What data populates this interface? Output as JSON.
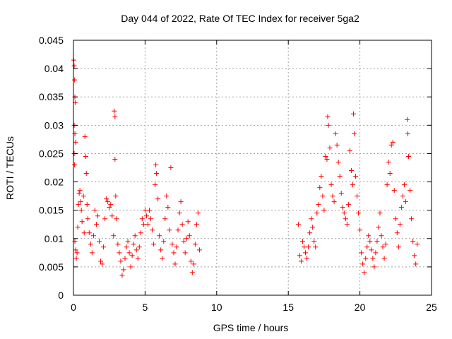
{
  "chart_data": {
    "type": "scatter",
    "title": "Day 044 of 2022, Rate Of TEC Index for receiver 5ga2",
    "xlabel": "GPS time / hours",
    "ylabel": "ROTI / TECUs",
    "xlim": [
      0,
      25
    ],
    "ylim": [
      0,
      0.045
    ],
    "xticks": [
      0,
      5,
      10,
      15,
      20,
      25
    ],
    "yticks": [
      0,
      0.005,
      0.01,
      0.015,
      0.02,
      0.025,
      0.03,
      0.035,
      0.04,
      0.045
    ],
    "xtick_labels": [
      "0",
      "5",
      "10",
      "15",
      "20",
      "25"
    ],
    "ytick_labels": [
      "0",
      "0.005",
      "0.01",
      "0.015",
      "0.02",
      "0.025",
      "0.03",
      "0.035",
      "0.04",
      "0.045"
    ],
    "grid": true,
    "marker": "+",
    "color": "#ff0000",
    "series": [
      {
        "name": "ROTI",
        "points": [
          [
            0.02,
            0.0415
          ],
          [
            0.05,
            0.0405
          ],
          [
            0.08,
            0.038
          ],
          [
            0.1,
            0.035
          ],
          [
            0.12,
            0.034
          ],
          [
            0.05,
            0.03
          ],
          [
            0.1,
            0.0285
          ],
          [
            0.15,
            0.027
          ],
          [
            0.05,
            0.025
          ],
          [
            0.08,
            0.023
          ],
          [
            0.1,
            0.0095
          ],
          [
            0.15,
            0.008
          ],
          [
            0.2,
            0.0065
          ],
          [
            0.25,
            0.0075
          ],
          [
            0.3,
            0.012
          ],
          [
            0.35,
            0.016
          ],
          [
            0.4,
            0.018
          ],
          [
            0.45,
            0.0185
          ],
          [
            0.5,
            0.0165
          ],
          [
            0.55,
            0.015
          ],
          [
            0.6,
            0.013
          ],
          [
            0.7,
            0.0175
          ],
          [
            0.75,
            0.011
          ],
          [
            0.8,
            0.028
          ],
          [
            0.85,
            0.0245
          ],
          [
            0.9,
            0.0215
          ],
          [
            0.95,
            0.016
          ],
          [
            1.0,
            0.0135
          ],
          [
            1.1,
            0.011
          ],
          [
            1.2,
            0.009
          ],
          [
            1.3,
            0.0075
          ],
          [
            1.4,
            0.0105
          ],
          [
            1.5,
            0.015
          ],
          [
            1.6,
            0.0125
          ],
          [
            1.7,
            0.014
          ],
          [
            1.8,
            0.0095
          ],
          [
            1.9,
            0.006
          ],
          [
            2.0,
            0.0055
          ],
          [
            2.1,
            0.0085
          ],
          [
            2.2,
            0.0135
          ],
          [
            2.3,
            0.017
          ],
          [
            2.4,
            0.0165
          ],
          [
            2.5,
            0.0155
          ],
          [
            2.6,
            0.016
          ],
          [
            2.7,
            0.014
          ],
          [
            2.8,
            0.0105
          ],
          [
            2.85,
            0.0325
          ],
          [
            2.9,
            0.0315
          ],
          [
            2.9,
            0.024
          ],
          [
            2.95,
            0.0175
          ],
          [
            3.0,
            0.0135
          ],
          [
            3.1,
            0.009
          ],
          [
            3.2,
            0.0075
          ],
          [
            3.3,
            0.006
          ],
          [
            3.4,
            0.0035
          ],
          [
            3.5,
            0.0045
          ],
          [
            3.6,
            0.0065
          ],
          [
            3.7,
            0.0085
          ],
          [
            3.8,
            0.0095
          ],
          [
            3.9,
            0.0075
          ],
          [
            4.0,
            0.005
          ],
          [
            4.1,
            0.007
          ],
          [
            4.2,
            0.009
          ],
          [
            4.3,
            0.0105
          ],
          [
            4.4,
            0.008
          ],
          [
            4.5,
            0.0065
          ],
          [
            4.6,
            0.0085
          ],
          [
            4.7,
            0.011
          ],
          [
            4.8,
            0.0135
          ],
          [
            4.9,
            0.0125
          ],
          [
            5.0,
            0.015
          ],
          [
            5.1,
            0.014
          ],
          [
            5.2,
            0.0125
          ],
          [
            5.3,
            0.015
          ],
          [
            5.4,
            0.0135
          ],
          [
            5.5,
            0.0115
          ],
          [
            5.6,
            0.009
          ],
          [
            5.7,
            0.0195
          ],
          [
            5.75,
            0.023
          ],
          [
            5.8,
            0.0215
          ],
          [
            5.9,
            0.017
          ],
          [
            6.0,
            0.0105
          ],
          [
            6.1,
            0.008
          ],
          [
            6.2,
            0.0065
          ],
          [
            6.3,
            0.0095
          ],
          [
            6.4,
            0.0135
          ],
          [
            6.5,
            0.0175
          ],
          [
            6.6,
            0.0155
          ],
          [
            6.7,
            0.0115
          ],
          [
            6.8,
            0.0225
          ],
          [
            6.9,
            0.009
          ],
          [
            7.0,
            0.0075
          ],
          [
            7.1,
            0.0055
          ],
          [
            7.2,
            0.0085
          ],
          [
            7.3,
            0.0115
          ],
          [
            7.4,
            0.0145
          ],
          [
            7.5,
            0.0165
          ],
          [
            7.6,
            0.0125
          ],
          [
            7.7,
            0.0095
          ],
          [
            7.8,
            0.0075
          ],
          [
            7.9,
            0.01
          ],
          [
            8.0,
            0.013
          ],
          [
            8.1,
            0.0105
          ],
          [
            8.2,
            0.006
          ],
          [
            8.3,
            0.004
          ],
          [
            8.4,
            0.0055
          ],
          [
            8.5,
            0.009
          ],
          [
            8.6,
            0.0125
          ],
          [
            8.7,
            0.0145
          ],
          [
            8.8,
            0.008
          ],
          [
            15.7,
            0.0125
          ],
          [
            15.8,
            0.007
          ],
          [
            15.9,
            0.006
          ],
          [
            16.0,
            0.0095
          ],
          [
            16.1,
            0.0085
          ],
          [
            16.2,
            0.0075
          ],
          [
            16.3,
            0.0065
          ],
          [
            16.4,
            0.0085
          ],
          [
            16.5,
            0.011
          ],
          [
            16.6,
            0.0135
          ],
          [
            16.7,
            0.012
          ],
          [
            16.8,
            0.0095
          ],
          [
            16.9,
            0.0085
          ],
          [
            17.0,
            0.0145
          ],
          [
            17.1,
            0.016
          ],
          [
            17.2,
            0.019
          ],
          [
            17.3,
            0.021
          ],
          [
            17.4,
            0.0175
          ],
          [
            17.5,
            0.015
          ],
          [
            17.6,
            0.0245
          ],
          [
            17.7,
            0.024
          ],
          [
            17.75,
            0.0315
          ],
          [
            17.8,
            0.03
          ],
          [
            17.9,
            0.026
          ],
          [
            18.0,
            0.0195
          ],
          [
            18.1,
            0.0175
          ],
          [
            18.2,
            0.0165
          ],
          [
            18.3,
            0.0285
          ],
          [
            18.4,
            0.0265
          ],
          [
            18.5,
            0.0235
          ],
          [
            18.6,
            0.021
          ],
          [
            18.7,
            0.018
          ],
          [
            18.8,
            0.0155
          ],
          [
            18.9,
            0.0145
          ],
          [
            19.0,
            0.0135
          ],
          [
            19.1,
            0.0125
          ],
          [
            19.2,
            0.016
          ],
          [
            19.3,
            0.0255
          ],
          [
            19.4,
            0.022
          ],
          [
            19.5,
            0.0195
          ],
          [
            19.55,
            0.032
          ],
          [
            19.6,
            0.0285
          ],
          [
            19.7,
            0.021
          ],
          [
            19.8,
            0.0175
          ],
          [
            19.9,
            0.0145
          ],
          [
            20.0,
            0.0115
          ],
          [
            20.1,
            0.0075
          ],
          [
            20.2,
            0.0055
          ],
          [
            20.3,
            0.004
          ],
          [
            20.4,
            0.0065
          ],
          [
            20.5,
            0.0085
          ],
          [
            20.6,
            0.0105
          ],
          [
            20.7,
            0.0095
          ],
          [
            20.8,
            0.008
          ],
          [
            20.9,
            0.0065
          ],
          [
            21.0,
            0.005
          ],
          [
            21.1,
            0.0075
          ],
          [
            21.2,
            0.0095
          ],
          [
            21.3,
            0.012
          ],
          [
            21.4,
            0.0145
          ],
          [
            21.5,
            0.0105
          ],
          [
            21.6,
            0.0085
          ],
          [
            21.7,
            0.0065
          ],
          [
            21.8,
            0.009
          ],
          [
            21.9,
            0.0195
          ],
          [
            22.0,
            0.0235
          ],
          [
            22.1,
            0.0215
          ],
          [
            22.2,
            0.0265
          ],
          [
            22.3,
            0.027
          ],
          [
            22.4,
            0.0185
          ],
          [
            22.5,
            0.0135
          ],
          [
            22.6,
            0.011
          ],
          [
            22.7,
            0.0085
          ],
          [
            22.8,
            0.0125
          ],
          [
            22.9,
            0.0155
          ],
          [
            23.0,
            0.0175
          ],
          [
            23.1,
            0.0195
          ],
          [
            23.2,
            0.0165
          ],
          [
            23.3,
            0.031
          ],
          [
            23.35,
            0.0285
          ],
          [
            23.4,
            0.0245
          ],
          [
            23.5,
            0.0185
          ],
          [
            23.6,
            0.0135
          ],
          [
            23.7,
            0.0095
          ],
          [
            23.8,
            0.007
          ],
          [
            23.9,
            0.0055
          ],
          [
            24.0,
            0.009
          ]
        ]
      }
    ]
  }
}
